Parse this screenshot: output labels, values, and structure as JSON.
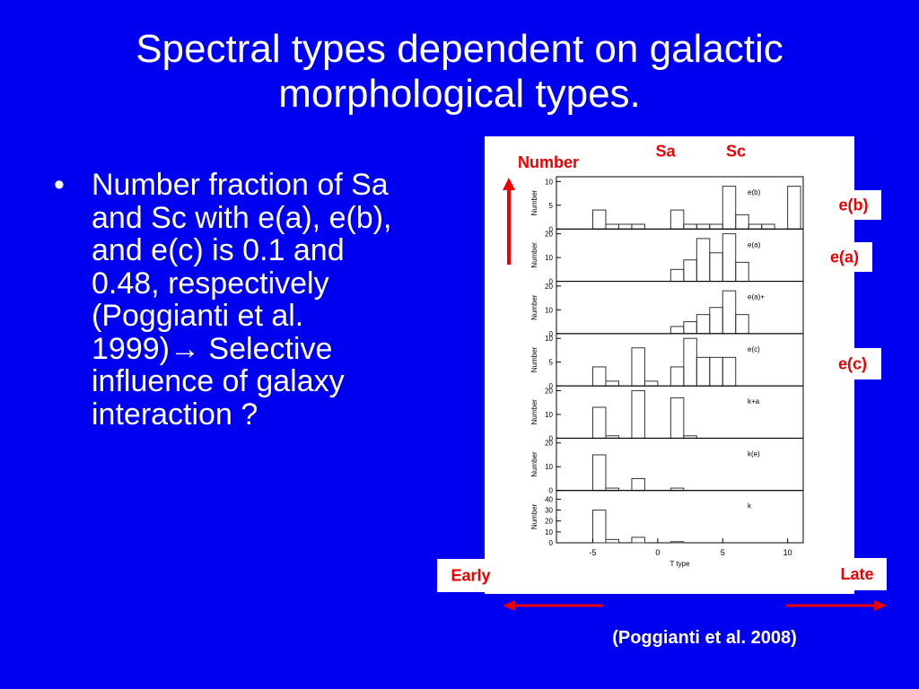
{
  "slide": {
    "title": "Spectral types dependent on galactic morphological types.",
    "bullet": {
      "text_before": "Number fraction of Sa and Sc with e(a), e(b), and e(c) is 0.1 and 0.48, respectively (Poggianti et al. 1999)",
      "arrow": "→",
      "text_after": " Selective influence of galaxy interaction ?"
    },
    "annotations": {
      "number": "Number",
      "sa": "Sa",
      "sc": "Sc",
      "eb": "e(b)",
      "ea": "e(a)",
      "ec": "e(c)",
      "early": "Early",
      "late": "Late"
    },
    "citation": "(Poggianti et al. 2008)"
  },
  "figure": {
    "xlabel": "T type",
    "ylabel": "Number",
    "xlim": [
      -7.8,
      11.2
    ],
    "xticks": [
      -5,
      0,
      5,
      10
    ],
    "bins": [
      -6,
      -5,
      -4,
      -3,
      -2,
      -1,
      0,
      1,
      2,
      3,
      4,
      5,
      6,
      7,
      8,
      9,
      10,
      11
    ],
    "panels": [
      {
        "label": "e(b)",
        "ylim": [
          0,
          11
        ],
        "yticks": [
          0,
          5,
          10
        ],
        "values": [
          0,
          4,
          1,
          1,
          1,
          0,
          0,
          4,
          1,
          1,
          1,
          9,
          3,
          1,
          1,
          0,
          9
        ]
      },
      {
        "label": "e(a)",
        "ylim": [
          0,
          22
        ],
        "yticks": [
          0,
          10,
          20
        ],
        "values": [
          0,
          0,
          0,
          0,
          0,
          0,
          0,
          5,
          9,
          18,
          12,
          20,
          8,
          0,
          0,
          0,
          0
        ]
      },
      {
        "label": "e(a)+",
        "ylim": [
          0,
          22
        ],
        "yticks": [
          0,
          10,
          20
        ],
        "values": [
          0,
          0,
          0,
          0,
          0,
          0,
          0,
          3,
          5,
          8,
          11,
          18,
          8,
          0,
          0,
          0,
          0
        ]
      },
      {
        "label": "e(c)",
        "ylim": [
          0,
          11
        ],
        "yticks": [
          0,
          5,
          10
        ],
        "values": [
          0,
          4,
          1,
          0,
          8,
          1,
          0,
          4,
          10,
          6,
          6,
          6,
          0,
          0,
          0,
          0,
          0
        ]
      },
      {
        "label": "k+a",
        "ylim": [
          0,
          22
        ],
        "yticks": [
          0,
          10,
          20
        ],
        "values": [
          0,
          13,
          1,
          0,
          20,
          0,
          0,
          17,
          1,
          0,
          0,
          0,
          0,
          0,
          0,
          0,
          0
        ]
      },
      {
        "label": "k(e)",
        "ylim": [
          0,
          22
        ],
        "yticks": [
          0,
          10,
          20
        ],
        "values": [
          0,
          15,
          1,
          0,
          5,
          0,
          0,
          1,
          0,
          0,
          0,
          0,
          0,
          0,
          0,
          0,
          0
        ]
      },
      {
        "label": "k",
        "ylim": [
          0,
          48
        ],
        "yticks": [
          0,
          10,
          20,
          30,
          40
        ],
        "values": [
          0,
          30,
          3,
          0,
          5,
          0,
          0,
          1,
          0,
          0,
          0,
          0,
          0,
          0,
          0,
          0,
          0
        ]
      }
    ]
  }
}
